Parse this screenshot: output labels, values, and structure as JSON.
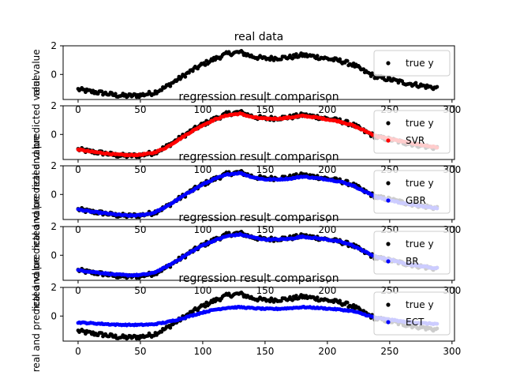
{
  "chart_data": [
    {
      "type": "scatter",
      "title": "real data",
      "ylabel": "real value",
      "xlim": [
        -12,
        302
      ],
      "ylim": [
        -1.75,
        2
      ],
      "xticks": [
        0,
        50,
        100,
        150,
        200,
        250,
        300
      ],
      "yticks": [
        0,
        2
      ],
      "series": [
        {
          "name": "true y",
          "color": "#000000",
          "source": "true_y"
        }
      ]
    },
    {
      "type": "scatter",
      "title": "regression result comparison",
      "ylabel": "real and predicted value",
      "xlim": [
        -12,
        302
      ],
      "ylim": [
        -1.75,
        2
      ],
      "xticks": [
        0,
        50,
        100,
        150,
        200,
        250,
        300
      ],
      "yticks": [
        0,
        2
      ],
      "series": [
        {
          "name": "true y",
          "color": "#000000",
          "source": "true_y"
        },
        {
          "name": "SVR",
          "color": "#ff0000",
          "source": "svr"
        }
      ]
    },
    {
      "type": "scatter",
      "title": "regression result comparison",
      "ylabel": "real and predicted value",
      "xlim": [
        -12,
        302
      ],
      "ylim": [
        -1.75,
        2
      ],
      "xticks": [
        0,
        50,
        100,
        150,
        200,
        250,
        300
      ],
      "yticks": [
        0,
        2
      ],
      "series": [
        {
          "name": "true y",
          "color": "#000000",
          "source": "true_y"
        },
        {
          "name": "GBR",
          "color": "#0000ff",
          "source": "gbr"
        }
      ]
    },
    {
      "type": "scatter",
      "title": "regression result comparison",
      "ylabel": "real and predicted value",
      "xlim": [
        -12,
        302
      ],
      "ylim": [
        -1.75,
        2
      ],
      "xticks": [
        0,
        50,
        100,
        150,
        200,
        250,
        300
      ],
      "yticks": [
        0,
        2
      ],
      "series": [
        {
          "name": "true y",
          "color": "#000000",
          "source": "true_y"
        },
        {
          "name": "BR",
          "color": "#0000ff",
          "source": "br"
        }
      ]
    },
    {
      "type": "scatter",
      "title": "regression result comparison",
      "ylabel": "real and predicted value",
      "xlim": [
        -12,
        302
      ],
      "ylim": [
        -1.75,
        2
      ],
      "xticks": [
        0,
        50,
        100,
        150,
        200,
        250,
        300
      ],
      "yticks": [
        0,
        2
      ],
      "series": [
        {
          "name": "true y",
          "color": "#000000",
          "source": "true_y"
        },
        {
          "name": "ECT",
          "color": "#0000ff",
          "source": "ect"
        }
      ]
    }
  ],
  "series_data": {
    "x_start": 0,
    "x_end": 288,
    "true_y": [
      [
        0,
        -1.05
      ],
      [
        10,
        -1.2
      ],
      [
        20,
        -1.3
      ],
      [
        30,
        -1.45
      ],
      [
        40,
        -1.5
      ],
      [
        50,
        -1.45
      ],
      [
        60,
        -1.3
      ],
      [
        70,
        -0.9
      ],
      [
        80,
        -0.35
      ],
      [
        90,
        0.2
      ],
      [
        100,
        0.7
      ],
      [
        110,
        1.1
      ],
      [
        120,
        1.45
      ],
      [
        130,
        1.55
      ],
      [
        140,
        1.25
      ],
      [
        150,
        1.1
      ],
      [
        160,
        1.15
      ],
      [
        170,
        1.2
      ],
      [
        180,
        1.35
      ],
      [
        190,
        1.25
      ],
      [
        200,
        1.1
      ],
      [
        210,
        0.95
      ],
      [
        220,
        0.7
      ],
      [
        230,
        0.2
      ],
      [
        240,
        -0.2
      ],
      [
        250,
        -0.35
      ],
      [
        260,
        -0.55
      ],
      [
        270,
        -0.7
      ],
      [
        280,
        -0.85
      ],
      [
        288,
        -0.95
      ]
    ],
    "svr": [
      [
        0,
        -1.05
      ],
      [
        10,
        -1.2
      ],
      [
        20,
        -1.3
      ],
      [
        30,
        -1.4
      ],
      [
        40,
        -1.45
      ],
      [
        50,
        -1.42
      ],
      [
        60,
        -1.3
      ],
      [
        70,
        -0.95
      ],
      [
        80,
        -0.4
      ],
      [
        90,
        0.15
      ],
      [
        100,
        0.65
      ],
      [
        110,
        1.05
      ],
      [
        120,
        1.35
      ],
      [
        130,
        1.45
      ],
      [
        140,
        1.2
      ],
      [
        150,
        1.1
      ],
      [
        160,
        1.1
      ],
      [
        170,
        1.18
      ],
      [
        180,
        1.3
      ],
      [
        190,
        1.2
      ],
      [
        200,
        1.05
      ],
      [
        210,
        0.9
      ],
      [
        220,
        0.65
      ],
      [
        230,
        0.25
      ],
      [
        240,
        -0.15
      ],
      [
        250,
        -0.3
      ],
      [
        260,
        -0.5
      ],
      [
        270,
        -0.65
      ],
      [
        280,
        -0.8
      ],
      [
        288,
        -0.9
      ]
    ],
    "gbr": [
      [
        0,
        -1.05
      ],
      [
        10,
        -1.2
      ],
      [
        20,
        -1.3
      ],
      [
        30,
        -1.4
      ],
      [
        40,
        -1.48
      ],
      [
        50,
        -1.45
      ],
      [
        60,
        -1.3
      ],
      [
        70,
        -0.9
      ],
      [
        80,
        -0.35
      ],
      [
        90,
        0.2
      ],
      [
        100,
        0.7
      ],
      [
        110,
        1.1
      ],
      [
        120,
        1.4
      ],
      [
        130,
        1.5
      ],
      [
        140,
        1.2
      ],
      [
        150,
        1.05
      ],
      [
        160,
        1.05
      ],
      [
        170,
        1.1
      ],
      [
        180,
        1.25
      ],
      [
        190,
        1.15
      ],
      [
        200,
        1.05
      ],
      [
        210,
        0.9
      ],
      [
        220,
        0.65
      ],
      [
        230,
        0.2
      ],
      [
        240,
        -0.2
      ],
      [
        250,
        -0.4
      ],
      [
        260,
        -0.6
      ],
      [
        270,
        -0.75
      ],
      [
        280,
        -0.88
      ],
      [
        288,
        -0.95
      ]
    ],
    "br": [
      [
        0,
        -1.05
      ],
      [
        10,
        -1.15
      ],
      [
        20,
        -1.25
      ],
      [
        30,
        -1.35
      ],
      [
        40,
        -1.4
      ],
      [
        50,
        -1.38
      ],
      [
        60,
        -1.25
      ],
      [
        70,
        -0.85
      ],
      [
        80,
        -0.35
      ],
      [
        90,
        0.2
      ],
      [
        100,
        0.7
      ],
      [
        110,
        1.05
      ],
      [
        120,
        1.35
      ],
      [
        130,
        1.45
      ],
      [
        140,
        1.25
      ],
      [
        150,
        1.1
      ],
      [
        160,
        1.1
      ],
      [
        170,
        1.15
      ],
      [
        180,
        1.3
      ],
      [
        190,
        1.2
      ],
      [
        200,
        1.1
      ],
      [
        210,
        0.95
      ],
      [
        220,
        0.7
      ],
      [
        230,
        0.25
      ],
      [
        240,
        -0.15
      ],
      [
        250,
        -0.3
      ],
      [
        260,
        -0.55
      ],
      [
        270,
        -0.7
      ],
      [
        280,
        -0.82
      ],
      [
        288,
        -0.9
      ]
    ],
    "ect": [
      [
        0,
        -0.45
      ],
      [
        10,
        -0.5
      ],
      [
        20,
        -0.55
      ],
      [
        30,
        -0.6
      ],
      [
        40,
        -0.62
      ],
      [
        50,
        -0.62
      ],
      [
        60,
        -0.58
      ],
      [
        70,
        -0.45
      ],
      [
        80,
        -0.25
      ],
      [
        90,
        0.0
      ],
      [
        100,
        0.25
      ],
      [
        110,
        0.45
      ],
      [
        120,
        0.58
      ],
      [
        130,
        0.62
      ],
      [
        140,
        0.55
      ],
      [
        150,
        0.5
      ],
      [
        160,
        0.5
      ],
      [
        170,
        0.55
      ],
      [
        180,
        0.62
      ],
      [
        190,
        0.58
      ],
      [
        200,
        0.52
      ],
      [
        210,
        0.45
      ],
      [
        220,
        0.35
      ],
      [
        230,
        0.1
      ],
      [
        240,
        -0.15
      ],
      [
        250,
        -0.25
      ],
      [
        260,
        -0.38
      ],
      [
        270,
        -0.45
      ],
      [
        280,
        -0.52
      ],
      [
        288,
        -0.55
      ]
    ]
  }
}
